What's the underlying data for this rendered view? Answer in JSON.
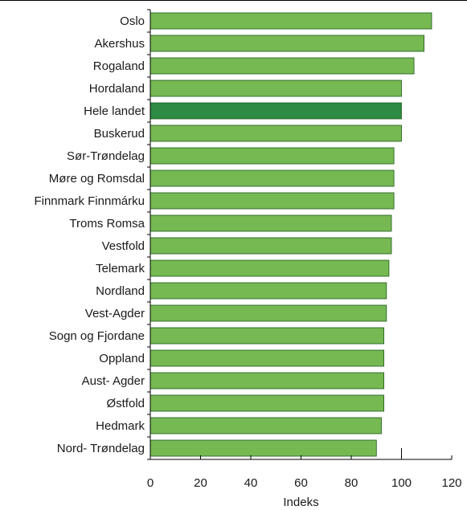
{
  "chart_data": {
    "type": "bar",
    "orientation": "horizontal",
    "xlabel": "Indeks",
    "xlim": [
      0,
      120
    ],
    "xticks": [
      0,
      20,
      40,
      60,
      80,
      100,
      120
    ],
    "grid": false,
    "reference_line": 100,
    "colors": {
      "bar": "#76b852",
      "highlight": "#2e8b43",
      "bar_border": "#1f5a1f"
    },
    "highlight_category": "Hele landet",
    "categories": [
      "Oslo",
      "Akershus",
      "Rogaland",
      "Hordaland",
      "Hele landet",
      "Buskerud",
      "Sør-Trøndelag",
      "Møre og Romsdal",
      "Finnmark Finnmárku",
      "Troms Romsa",
      "Vestfold",
      "Telemark",
      "Nordland",
      "Vest-Agder",
      "Sogn og Fjordane",
      "Oppland",
      "Aust- Agder",
      "Østfold",
      "Hedmark",
      "Nord- Trøndelag"
    ],
    "values": [
      112,
      109,
      105,
      100,
      100,
      100,
      97,
      97,
      97,
      96,
      96,
      95,
      94,
      94,
      93,
      93,
      93,
      93,
      92,
      90
    ]
  }
}
